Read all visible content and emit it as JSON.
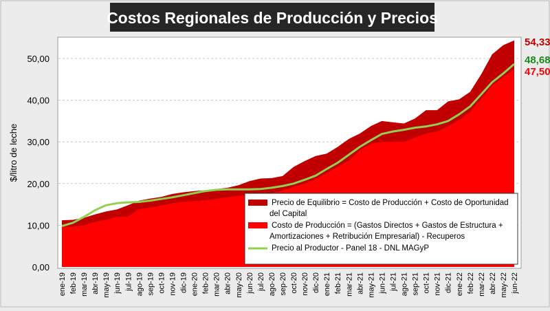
{
  "chart_data": {
    "type": "area",
    "title": "Costos Regionales de Producción y Precios",
    "ylabel": "$/litro de leche",
    "xlabel": "",
    "ylim": [
      0,
      55
    ],
    "yticks": [
      "0,00",
      "10,00",
      "20,00",
      "30,00",
      "40,00",
      "50,00"
    ],
    "ytick_values": [
      0,
      10,
      20,
      30,
      40,
      50
    ],
    "grid": true,
    "legend_position": "bottom-right",
    "categories": [
      "ene-19",
      "feb-19",
      "mar-19",
      "abr-19",
      "may-19",
      "jun-19",
      "jul-19",
      "ago-19",
      "sep-19",
      "oct-19",
      "nov-19",
      "dic-19",
      "ene-20",
      "feb-20",
      "mar-20",
      "abr-20",
      "may-20",
      "jun-20",
      "jul-20",
      "ago-20",
      "sep-20",
      "oct-20",
      "nov-20",
      "dic-20",
      "ene-21",
      "feb-21",
      "mar-21",
      "abr-21",
      "may-21",
      "jun-21",
      "jul-21",
      "ago-21",
      "sep-21",
      "oct-21",
      "nov-21",
      "dic-21",
      "ene-22",
      "feb-22",
      "mar-22",
      "abr-22",
      "may-22",
      "jun-22"
    ],
    "series": [
      {
        "name": "Precio de Equilibrio = Costo de Producción + Costo de Oportunidad del Capital",
        "legend_lines": [
          "Precio de Equilibrio = Costo de Producción + Costo de Oportunidad",
          "del Capital"
        ],
        "color": "#c00000",
        "kind": "area",
        "values": [
          11.2,
          11.3,
          11.8,
          12.6,
          13.3,
          13.8,
          14.8,
          15.9,
          16.4,
          16.8,
          17.5,
          17.9,
          18.2,
          18.4,
          18.7,
          19.0,
          19.6,
          20.6,
          21.2,
          21.3,
          21.8,
          24.0,
          25.4,
          26.6,
          27.2,
          28.8,
          30.7,
          32.0,
          33.8,
          35.0,
          34.7,
          34.4,
          35.6,
          37.6,
          37.6,
          39.7,
          40.2,
          42.0,
          46.2,
          51.0,
          53.2,
          54.33
        ],
        "end_label": "54,33"
      },
      {
        "name": "Costo de Producción = (Gastos Directos + Gastos de Estructura + Amortizaciones + Retribución Empresarial) - Recuperos",
        "legend_lines": [
          "Costo de Producción = (Gastos Directos + Gastos de Estructura +",
          "Amortizaciones + Retribución Empresarial) - Recuperos"
        ],
        "color": "#ff0000",
        "kind": "area",
        "values": [
          9.6,
          9.7,
          10.0,
          10.8,
          11.3,
          12.0,
          12.1,
          13.9,
          14.2,
          14.7,
          15.3,
          15.6,
          15.8,
          16.0,
          16.3,
          16.7,
          17.0,
          17.2,
          17.4,
          17.7,
          18.3,
          19.2,
          20.0,
          21.0,
          22.5,
          24.0,
          25.5,
          28.0,
          29.5,
          30.0,
          30.0,
          30.0,
          31.0,
          32.0,
          32.5,
          33.8,
          35.2,
          37.2,
          40.2,
          43.5,
          45.5,
          47.5
        ],
        "end_label": "47,50"
      },
      {
        "name": "Precio al Productor - Panel 18 - DNL MAGyP",
        "legend_lines": [
          "Precio al Productor - Panel 18 - DNL MAGyP"
        ],
        "color": "#92d050",
        "kind": "line",
        "values": [
          9.8,
          10.6,
          12.0,
          13.6,
          14.8,
          15.3,
          15.5,
          15.6,
          15.9,
          16.3,
          16.7,
          17.2,
          17.7,
          18.2,
          18.5,
          18.6,
          18.6,
          18.6,
          18.7,
          19.0,
          19.4,
          20.0,
          20.9,
          21.9,
          23.5,
          25.0,
          26.9,
          28.8,
          30.4,
          31.9,
          32.5,
          32.9,
          33.4,
          33.7,
          34.2,
          35.0,
          36.6,
          38.5,
          41.4,
          44.3,
          46.4,
          48.68
        ],
        "end_label": "48,68",
        "end_label_color": "#1a8a1a"
      }
    ]
  }
}
